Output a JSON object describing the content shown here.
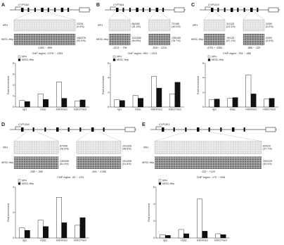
{
  "panels": [
    {
      "letter": "A",
      "gene": "CYP1A2",
      "sample_labels": [
        "hPH",
        "hESC-Hep"
      ],
      "regions": [
        {
          "range": "-1363 ~ -898",
          "hph": "2/376",
          "hph_pct": "(0.5%)",
          "hesc": "346/376",
          "hesc_pct": "(92.0%)"
        }
      ],
      "chart_data": {
        "type": "bar",
        "title": "ChIP region: -1276 ~ -1253",
        "y_label": "Fold enrichment",
        "categories": [
          "IgG",
          "H3ac",
          "H3K4me3",
          "H3K27me3"
        ],
        "series": [
          {
            "name": "hPH",
            "color": "#ffffff",
            "values": [
              1.2,
              2.4,
              4.6,
              1.1
            ]
          },
          {
            "name": "hESC-Hep",
            "color": "#111111",
            "values": [
              1.0,
              1.4,
              1.6,
              1.3
            ]
          }
        ],
        "ylim": [
          0,
          8
        ],
        "yticks": [
          0,
          2,
          4,
          6,
          8
        ]
      }
    },
    {
      "letter": "B",
      "gene": "CYP3A4",
      "sample_labels": [
        "hPH",
        "hESC-Hep"
      ],
      "regions": [
        {
          "range": "-1213 ~ -794",
          "hph": "86/168",
          "hph_pct": "(51.2%)",
          "hesc": "142/168",
          "hesc_pct": "(84.5%)"
        },
        {
          "range": "-918 ~ -1224",
          "hph": "72/180",
          "hph_pct": "(40.0%)",
          "hesc": "138/180",
          "hesc_pct": "(76.7%)"
        }
      ],
      "chart_data": {
        "type": "bar",
        "title": "ChIP region: -954 ~ -1224",
        "y_label": "Fold enrichment",
        "categories": [
          "IgG",
          "H3ac",
          "H3K4me3",
          "H3K27me3"
        ],
        "series": [
          {
            "name": "hPH",
            "color": "#ffffff",
            "values": [
              1.0,
              1.6,
              4.2,
              1.8
            ]
          },
          {
            "name": "hESC-Hep",
            "color": "#111111",
            "values": [
              0.9,
              1.2,
              2.6,
              3.4
            ]
          }
        ],
        "ylim": [
          0,
          6
        ],
        "yticks": [
          0,
          2,
          4,
          6
        ]
      }
    },
    {
      "letter": "C",
      "gene": "CYP2C9",
      "sample_labels": [
        "hPH",
        "hESC-Hep"
      ],
      "regions": [
        {
          "range": "-4793 ~ -4363",
          "hph": "31/133",
          "hph_pct": "(23.3%)",
          "hesc": "76/133",
          "hesc_pct": "(57.1%)"
        },
        {
          "range": "-866 ~ -125",
          "hph": "0/300",
          "hph_pct": "(0.0%)",
          "hesc": "0/300",
          "hesc_pct": "(0.0%)"
        }
      ],
      "chart_data": {
        "type": "bar",
        "title": "ChIP region: -754 ~ -466",
        "y_label": "Fold enrichment",
        "categories": [
          "IgG",
          "H3ac",
          "H3K4me3",
          "H3K27me3"
        ],
        "series": [
          {
            "name": "hPH",
            "color": "#ffffff",
            "values": [
              1.0,
              1.2,
              4.4,
              1.1
            ]
          },
          {
            "name": "hESC-Hep",
            "color": "#111111",
            "values": [
              1.1,
              1.3,
              1.8,
              1.2
            ]
          }
        ],
        "ylim": [
          0,
          6
        ],
        "yticks": [
          0,
          2,
          4,
          6
        ]
      }
    },
    {
      "letter": "D",
      "gene": "CYP2D6",
      "sample_labels": [
        "hPH",
        "hESC-Hep"
      ],
      "regions": [
        {
          "range": "-298 ~ -359",
          "hph": "87/306",
          "hph_pct": "(28.4%)",
          "hesc": "249/306",
          "hesc_pct": "(81.4%)"
        },
        {
          "range": "-904 ~ -1286",
          "hph": "101/208",
          "hph_pct": "(48.6%)",
          "hesc": "191/208",
          "hesc_pct": "(91.8%)"
        }
      ],
      "chart_data": {
        "type": "bar",
        "title": "ChIP region: -52 ~ -103",
        "y_label": "Fold enrichment",
        "categories": [
          "IgG",
          "H3ac",
          "H3K4me3",
          "H3K27me3"
        ],
        "series": [
          {
            "name": "hPH",
            "color": "#ffffff",
            "values": [
              0.8,
              1.4,
              3.2,
              1.0
            ]
          },
          {
            "name": "hESC-Hep",
            "color": "#111111",
            "values": [
              0.6,
              0.9,
              1.2,
              1.6
            ]
          }
        ],
        "ylim": [
          0,
          4
        ],
        "yticks": [
          0,
          2,
          4
        ]
      }
    },
    {
      "letter": "E",
      "gene": "CYP2E1",
      "sample_labels": [
        "hPH",
        "hESC-Hep"
      ],
      "regions": [
        {
          "range": "-202 ~ +129",
          "hph": "83/220",
          "hph_pct": "(37.7%)",
          "hesc": "200/220",
          "hesc_pct": "(90.9%)"
        }
      ],
      "chart_data": {
        "type": "bar",
        "title": "ChIP region: -170 ~ +946",
        "y_label": "Fold enrichment",
        "categories": [
          "IgG",
          "H3ac",
          "H3K4me3",
          "H3K27me3"
        ],
        "series": [
          {
            "name": "hPH",
            "color": "#ffffff",
            "values": [
              0.4,
              1.0,
              4.6,
              0.5
            ]
          },
          {
            "name": "hESC-Hep",
            "color": "#111111",
            "values": [
              0.3,
              0.5,
              0.8,
              0.4
            ]
          }
        ],
        "ylim": [
          0,
          6
        ],
        "yticks": [
          0,
          2,
          4,
          6
        ]
      }
    }
  ]
}
